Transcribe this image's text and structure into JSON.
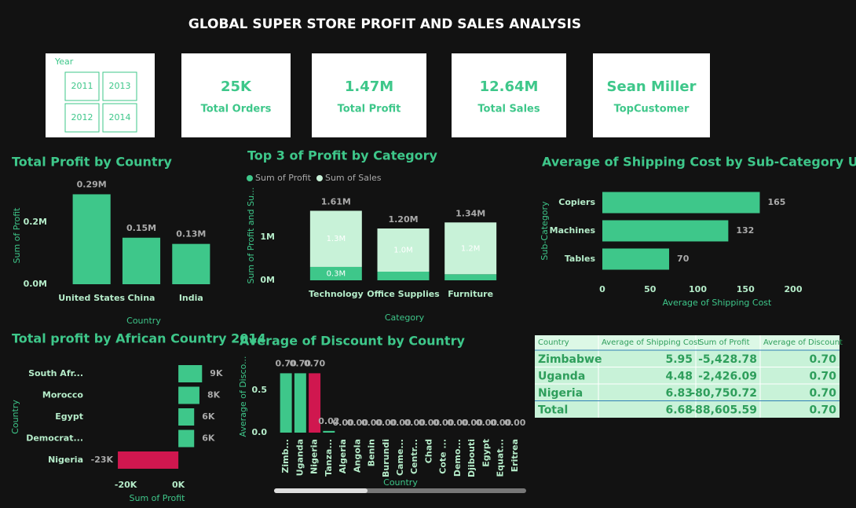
{
  "header": {
    "title": "GLOBAL SUPER STORE PROFIT AND SALES ANALYSIS"
  },
  "slicer": {
    "label": "Year",
    "items": [
      "2011",
      "2013",
      "2012",
      "2014"
    ]
  },
  "kpis": [
    {
      "value": "25K",
      "label": "Total Orders"
    },
    {
      "value": "1.47M",
      "label": "Total Profit"
    },
    {
      "value": "12.64M",
      "label": "Total Sales"
    },
    {
      "value": "Sean Miller",
      "label": "TopCustomer"
    }
  ],
  "chart_data": [
    {
      "type": "bar",
      "title": "Total Profit by Country",
      "x_label": "Country",
      "y_label": "Sum of Profit",
      "categories": [
        "United States",
        "China",
        "India"
      ],
      "values": [
        0.29,
        0.15,
        0.13
      ],
      "value_labels": [
        "0.29M",
        "0.15M",
        "0.13M"
      ],
      "color": "#3ec78a",
      "ylim": [
        0,
        0.3
      ],
      "yticks": [
        {
          "value": 0,
          "label": "0.0M"
        },
        {
          "value": 0.2,
          "label": "0.2M"
        }
      ]
    },
    {
      "type": "bar",
      "title": "Top 3 of Profit by Category",
      "x_label": "Category",
      "y_label": "Sum of Profit and Su...",
      "categories": [
        "Technology",
        "Office Supplies",
        "Furniture"
      ],
      "series": [
        {
          "name": "Sum of Profit",
          "color": "#3ec78a",
          "values": [
            0.31,
            0.2,
            0.14
          ],
          "value_labels": [
            "0.3M",
            null,
            null
          ]
        },
        {
          "name": "Sum of Sales",
          "color": "#c8f2d8",
          "values": [
            1.3,
            1.0,
            1.2
          ],
          "value_labels": [
            "1.3M",
            "1.0M",
            "1.2M"
          ]
        }
      ],
      "totals": [
        1.61,
        1.2,
        1.34
      ],
      "total_labels": [
        "1.61M",
        "1.20M",
        "1.34M"
      ],
      "legend": "top-left",
      "ylim": [
        0,
        1.8
      ],
      "yticks": [
        {
          "value": 0,
          "label": "0M"
        },
        {
          "value": 1,
          "label": "1M"
        }
      ]
    },
    {
      "type": "hbar",
      "title": "Average of Shipping Cost by Sub-Category USA",
      "x_label": "Average of Shipping Cost",
      "y_label": "Sub-Category",
      "categories": [
        "Copiers",
        "Machines",
        "Tables"
      ],
      "values": [
        165,
        132,
        70
      ],
      "color": "#3ec78a",
      "xlim": [
        0,
        200
      ],
      "xticks": [
        0,
        50,
        100,
        150,
        200
      ]
    },
    {
      "type": "hbar",
      "title": "Total profit by African Country 2014",
      "x_label": "Sum of Profit",
      "y_label": "Country",
      "categories": [
        "South Afr...",
        "Morocco",
        "Egypt",
        "Democrat...",
        "Nigeria"
      ],
      "values": [
        9,
        8,
        6,
        6,
        -23
      ],
      "value_labels": [
        "9K",
        "8K",
        "6K",
        "6K",
        "-23K"
      ],
      "colors": [
        "#3ec78a",
        "#3ec78a",
        "#3ec78a",
        "#3ec78a",
        "#d0174f"
      ],
      "xlim": [
        -26,
        11
      ],
      "xticks": [
        {
          "value": -20,
          "label": "-20K"
        },
        {
          "value": 0,
          "label": "0K"
        }
      ]
    },
    {
      "type": "bar",
      "title": "Average of Discount by Country",
      "x_label": "Country",
      "y_label": "Average of Disco...",
      "categories": [
        "Zimb...",
        "Uganda",
        "Nigeria",
        "Tanza...",
        "Algeria",
        "Angola",
        "Benin",
        "Burundi",
        "Came...",
        "Centr...",
        "Chad",
        "Cote ...",
        "Demo...",
        "Djibouti",
        "Egypt",
        "Equat...",
        "Eritrea"
      ],
      "values": [
        0.7,
        0.7,
        0.7,
        0.02,
        0,
        0,
        0,
        0,
        0,
        0,
        0,
        0,
        0,
        0,
        0,
        0,
        0
      ],
      "value_labels": [
        "0.70",
        "0.70",
        "0.70",
        "0.02",
        "0.00",
        "0.00",
        "0.00",
        "0.00",
        "0.00",
        "0.00",
        "0.00",
        "0.00",
        "0.00",
        "0.00",
        "0.00",
        "0.00",
        "0.00"
      ],
      "colors": [
        "#3ec78a",
        "#3ec78a",
        "#d0174f",
        "#3ec78a",
        "#3ec78a",
        "#3ec78a",
        "#3ec78a",
        "#3ec78a",
        "#3ec78a",
        "#3ec78a",
        "#3ec78a",
        "#3ec78a",
        "#3ec78a",
        "#3ec78a",
        "#3ec78a",
        "#3ec78a",
        "#3ec78a"
      ],
      "ylim": [
        0,
        0.8
      ],
      "yticks": [
        {
          "value": 0,
          "label": "0.0"
        },
        0.5
      ]
    }
  ],
  "table": {
    "columns": [
      "Country",
      "Average of Shipping Cost",
      "Sum of Profit",
      "Average of Discount"
    ],
    "rows": [
      [
        "Zimbabwe",
        "5.95",
        "-5,428.78",
        "0.70"
      ],
      [
        "Uganda",
        "4.48",
        "-2,426.09",
        "0.70"
      ],
      [
        "Nigeria",
        "6.83",
        "-80,750.72",
        "0.70"
      ],
      [
        "Total",
        "6.68",
        "-88,605.59",
        "0.70"
      ]
    ]
  }
}
